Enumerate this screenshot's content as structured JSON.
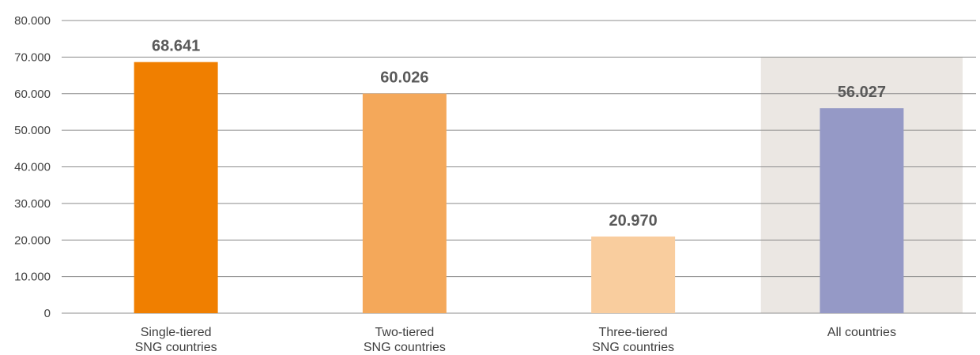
{
  "chart_data": {
    "type": "bar",
    "title": "",
    "xlabel": "",
    "ylabel": "",
    "categories": [
      [
        "Single-tiered",
        "SNG countries"
      ],
      [
        "Two-tiered",
        "SNG countries"
      ],
      [
        "Three-tiered",
        "SNG countries"
      ],
      [
        "All countries"
      ]
    ],
    "values": [
      68641,
      60026,
      20970,
      56027
    ],
    "data_labels": [
      "68.641",
      "60.026",
      "20.970",
      "56.027"
    ],
    "ylim": [
      0,
      80000
    ],
    "yticks": [
      0,
      10000,
      20000,
      30000,
      40000,
      50000,
      60000,
      70000,
      80000
    ],
    "ytick_labels": [
      "0",
      "10.000",
      "20.000",
      "30.000",
      "40.000",
      "50.000",
      "60.000",
      "70.000",
      "80.000"
    ],
    "colors": [
      "#f07f00",
      "#f4a85a",
      "#f9cd9e",
      "#9599c6"
    ],
    "highlight_category_index": 3,
    "highlight_color": "#ebe7e3",
    "grid": true,
    "legend": "none"
  }
}
